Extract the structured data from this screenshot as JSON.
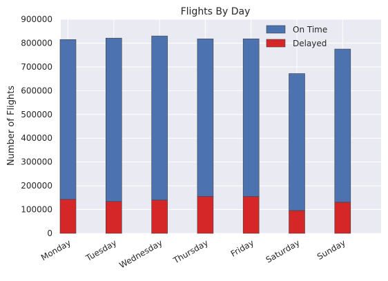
{
  "chart_data": {
    "type": "bar",
    "stacked": true,
    "title": "Flights By Day",
    "xlabel": "",
    "ylabel": "Number of Flights",
    "categories": [
      "Monday",
      "Tuesday",
      "Wednesday",
      "Thursday",
      "Friday",
      "Saturday",
      "Sunday"
    ],
    "series": [
      {
        "name": "On Time",
        "color": "#4c72b0",
        "values": [
          672000,
          687000,
          690000,
          663000,
          663000,
          576000,
          644000
        ]
      },
      {
        "name": "Delayed",
        "color": "#d62728",
        "values": [
          143000,
          134000,
          140000,
          155000,
          155000,
          96000,
          131000
        ]
      }
    ],
    "ylim": [
      0,
      900000
    ],
    "yticks": [
      "0",
      "100000",
      "200000",
      "300000",
      "400000",
      "500000",
      "600000",
      "700000",
      "800000",
      "900000"
    ],
    "grid": true,
    "legend_position": "top-right",
    "background": "#eaeaf2"
  }
}
